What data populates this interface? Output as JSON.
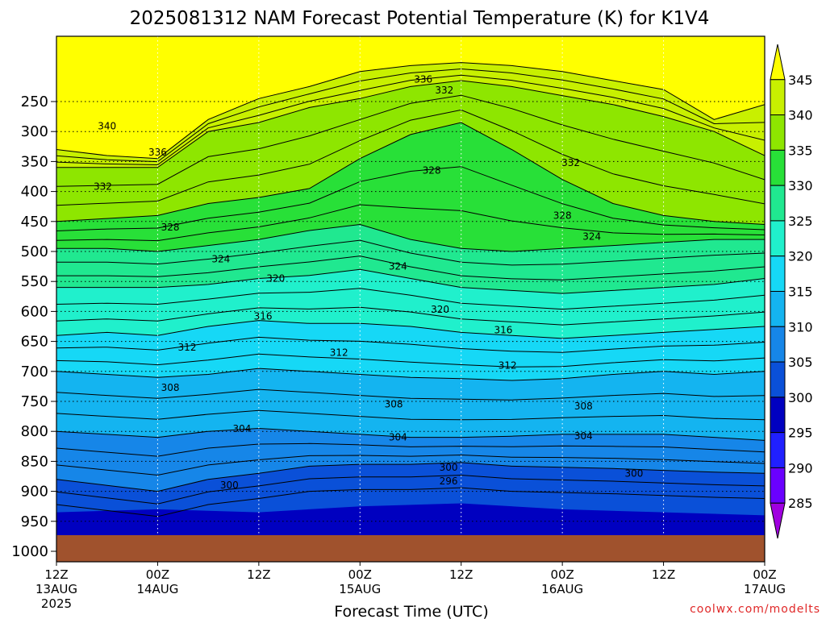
{
  "title": "2025081312 NAM Forecast Potential Temperature (K) for K1V4",
  "xlabel": "Forecast Time (UTC)",
  "credit": "coolwx.com/modelts",
  "chart_data": {
    "type": "heatmap",
    "title": "2025081312 NAM Forecast Potential Temperature (K) for K1V4",
    "xlabel": "Forecast Time (UTC)",
    "ylabel": "",
    "x_ticks": [
      {
        "hours": 0,
        "lines": [
          "12Z",
          "13AUG",
          "2025"
        ]
      },
      {
        "hours": 12,
        "lines": [
          "00Z",
          "14AUG"
        ]
      },
      {
        "hours": 24,
        "lines": [
          "12Z"
        ]
      },
      {
        "hours": 36,
        "lines": [
          "00Z",
          "15AUG"
        ]
      },
      {
        "hours": 48,
        "lines": [
          "12Z"
        ]
      },
      {
        "hours": 60,
        "lines": [
          "00Z",
          "16AUG"
        ]
      },
      {
        "hours": 72,
        "lines": [
          "12Z"
        ]
      },
      {
        "hours": 84,
        "lines": [
          "00Z",
          "17AUG"
        ]
      }
    ],
    "y_ticks": [
      250,
      300,
      350,
      400,
      450,
      500,
      550,
      600,
      650,
      700,
      750,
      800,
      850,
      900,
      950,
      1000
    ],
    "colorbar": {
      "labels": [
        "345",
        "340",
        "335",
        "330",
        "325",
        "320",
        "315",
        "310",
        "305",
        "300",
        "295",
        "290",
        "285"
      ],
      "levels": [
        285,
        290,
        295,
        300,
        305,
        310,
        315,
        320,
        325,
        330,
        335,
        340,
        345
      ],
      "colors": [
        "#a000e0",
        "#6a00ff",
        "#2020ff",
        "#0000c0",
        "#0a50d8",
        "#1686e8",
        "#14b4f0",
        "#16d8f6",
        "#20f0cc",
        "#20e890",
        "#28e038",
        "#8ee600",
        "#c8f000",
        "#ffff00"
      ]
    },
    "contour_labels": [
      {
        "text": "336",
        "t": 43.5,
        "p": 213
      },
      {
        "text": "332",
        "t": 46,
        "p": 231
      },
      {
        "text": "340",
        "t": 6,
        "p": 291
      },
      {
        "text": "336",
        "t": 12,
        "p": 335
      },
      {
        "text": "328",
        "t": 44.5,
        "p": 365
      },
      {
        "text": "332",
        "t": 61,
        "p": 352
      },
      {
        "text": "332",
        "t": 5.5,
        "p": 392
      },
      {
        "text": "328",
        "t": 13.5,
        "p": 460
      },
      {
        "text": "328",
        "t": 60,
        "p": 440
      },
      {
        "text": "324",
        "t": 63.5,
        "p": 475
      },
      {
        "text": "324",
        "t": 19.5,
        "p": 513
      },
      {
        "text": "324",
        "t": 40.5,
        "p": 525
      },
      {
        "text": "320",
        "t": 26,
        "p": 545
      },
      {
        "text": "320",
        "t": 45.5,
        "p": 597
      },
      {
        "text": "316",
        "t": 24.5,
        "p": 608
      },
      {
        "text": "316",
        "t": 53,
        "p": 631
      },
      {
        "text": "312",
        "t": 15.5,
        "p": 660
      },
      {
        "text": "312",
        "t": 33.5,
        "p": 669
      },
      {
        "text": "312",
        "t": 53.5,
        "p": 690
      },
      {
        "text": "308",
        "t": 13.5,
        "p": 727
      },
      {
        "text": "308",
        "t": 40,
        "p": 755
      },
      {
        "text": "308",
        "t": 62.5,
        "p": 758
      },
      {
        "text": "304",
        "t": 22,
        "p": 796
      },
      {
        "text": "304",
        "t": 40.5,
        "p": 810
      },
      {
        "text": "304",
        "t": 62.5,
        "p": 808
      },
      {
        "text": "300",
        "t": 46.5,
        "p": 860
      },
      {
        "text": "300",
        "t": 68.5,
        "p": 870
      },
      {
        "text": "300",
        "t": 20.5,
        "p": 890
      },
      {
        "text": "296",
        "t": 46.5,
        "p": 883
      }
    ]
  }
}
